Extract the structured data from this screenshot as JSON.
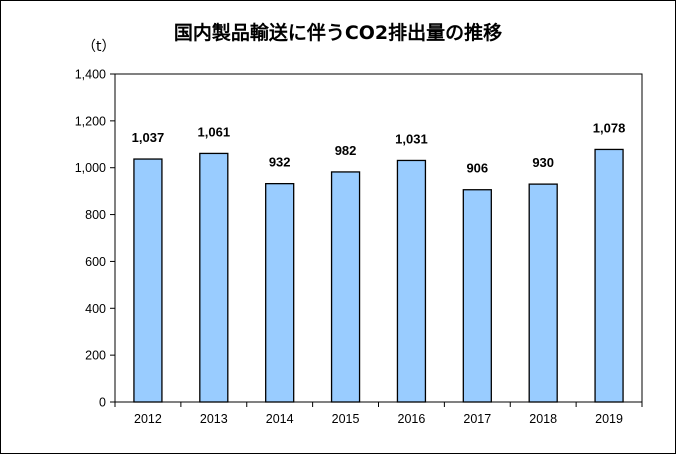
{
  "chart_data": {
    "type": "bar",
    "title": "国内製品輸送に伴うCO2排出量の推移",
    "unit": "（t）",
    "categories": [
      "2012",
      "2013",
      "2014",
      "2015",
      "2016",
      "2017",
      "2018",
      "2019"
    ],
    "values": [
      1037,
      1061,
      932,
      982,
      1031,
      906,
      930,
      1078
    ],
    "data_labels": [
      "1,037",
      "1,061",
      "932",
      "982",
      "1,031",
      "906",
      "930",
      "1,078"
    ],
    "ylim": [
      0,
      1400
    ],
    "yticks": [
      "0",
      "200",
      "400",
      "600",
      "800",
      "1,000",
      "1,200",
      "1,400"
    ],
    "ytick_values": [
      0,
      200,
      400,
      600,
      800,
      1000,
      1200,
      1400
    ],
    "grid": false,
    "legend": "none",
    "bar_color": "#99ccff",
    "bar_border_color": "#000000"
  }
}
